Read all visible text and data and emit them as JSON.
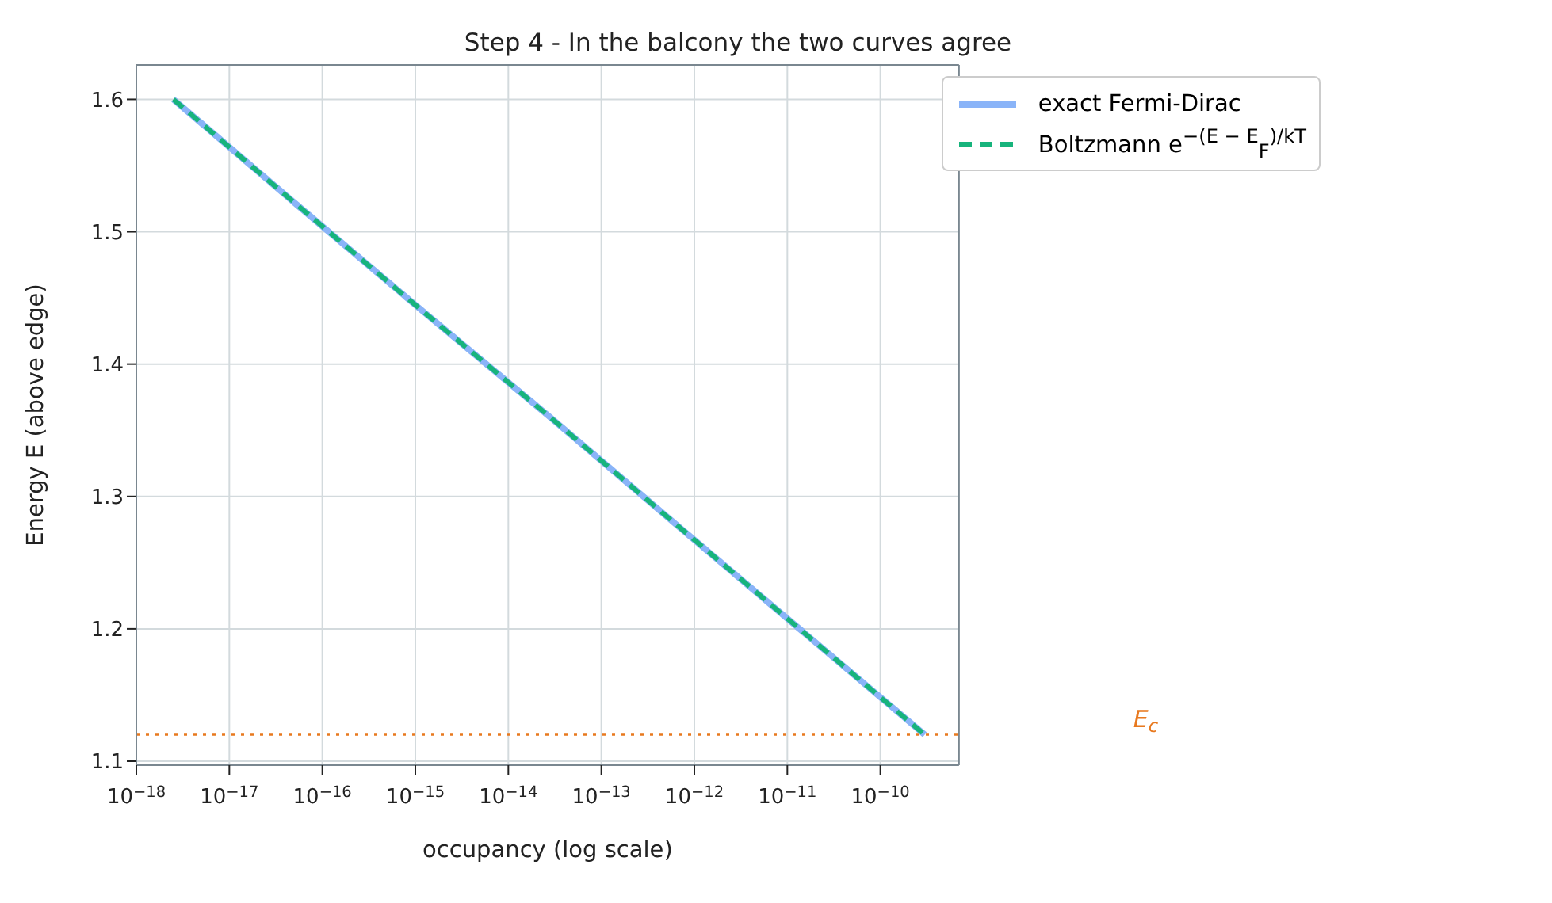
{
  "chart_data": {
    "type": "line",
    "title": "Step 4 - In the balcony the two curves agree",
    "xlabel": "occupancy (log scale)",
    "ylabel": "Energy E (above edge)",
    "x": [
      2.5e-18,
      5.4e-17,
      1.2e-15,
      2.8e-14,
      6.1e-13,
      1.35e-11,
      3e-10
    ],
    "series": [
      {
        "name": "exact Fermi-Dirac",
        "color": "#8ab4f8",
        "line_style": "solid",
        "values": [
          1.6,
          1.52,
          1.44,
          1.36,
          1.28,
          1.2,
          1.12
        ]
      },
      {
        "name": "Boltzmann e$^{−(E − E}$$_{F}$$^{)/kT}$",
        "color": "#17b47c",
        "line_style": "dashed",
        "values": [
          1.6,
          1.52,
          1.44,
          1.36,
          1.28,
          1.2,
          1.12
        ]
      }
    ],
    "log": "x",
    "xlim": [
      1e-18,
      7e-10
    ],
    "ylim": [
      1.097,
      1.626
    ],
    "xticks": [
      {
        "value": 1e-18,
        "label": "10$^{−18}$"
      },
      {
        "value": 1e-17,
        "label": "10$^{−17}$"
      },
      {
        "value": 1e-16,
        "label": "10$^{−16}$"
      },
      {
        "value": 1e-15,
        "label": "10$^{−15}$"
      },
      {
        "value": 1e-14,
        "label": "10$^{−14}$"
      },
      {
        "value": 1e-13,
        "label": "10$^{−13}$"
      },
      {
        "value": 1e-12,
        "label": "10$^{−12}$"
      },
      {
        "value": 1e-11,
        "label": "10$^{−11}$"
      },
      {
        "value": 1e-10,
        "label": "10$^{−10}$"
      }
    ],
    "yticks": [
      1.1,
      1.2,
      1.3,
      1.4,
      1.5,
      1.6
    ],
    "ref_lines": [
      {
        "axis": "y",
        "value": 1.12,
        "label": "E$_{c}$",
        "color": "#e8791f",
        "line_style": "dotted"
      }
    ],
    "grid": true,
    "legend": "top right",
    "marker": "none"
  }
}
